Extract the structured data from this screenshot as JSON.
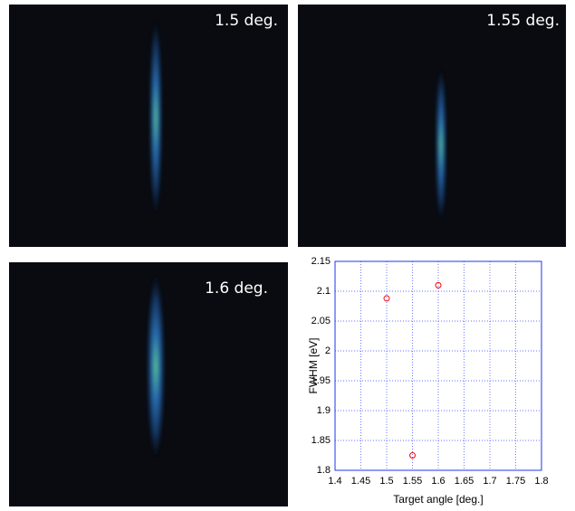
{
  "panels": [
    {
      "label": "1.5 deg."
    },
    {
      "label": "1.55 deg."
    },
    {
      "label": "1.6 deg."
    }
  ],
  "chart_data": {
    "type": "scatter",
    "x_label": "Target angle [deg.]",
    "y_label": "FWHM [eV]",
    "x": [
      1.5,
      1.55,
      1.6
    ],
    "values": [
      2.088,
      1.825,
      2.11
    ],
    "color": "#ff0000",
    "xlim": [
      1.4,
      1.8
    ],
    "ylim": [
      1.8,
      2.15
    ],
    "xticks": [
      1.4,
      1.45,
      1.5,
      1.55,
      1.6,
      1.65,
      1.7,
      1.75,
      1.8
    ],
    "yticks": [
      1.8,
      1.85,
      1.9,
      1.95,
      2,
      2.05,
      2.1,
      2.15
    ],
    "grid": true
  }
}
